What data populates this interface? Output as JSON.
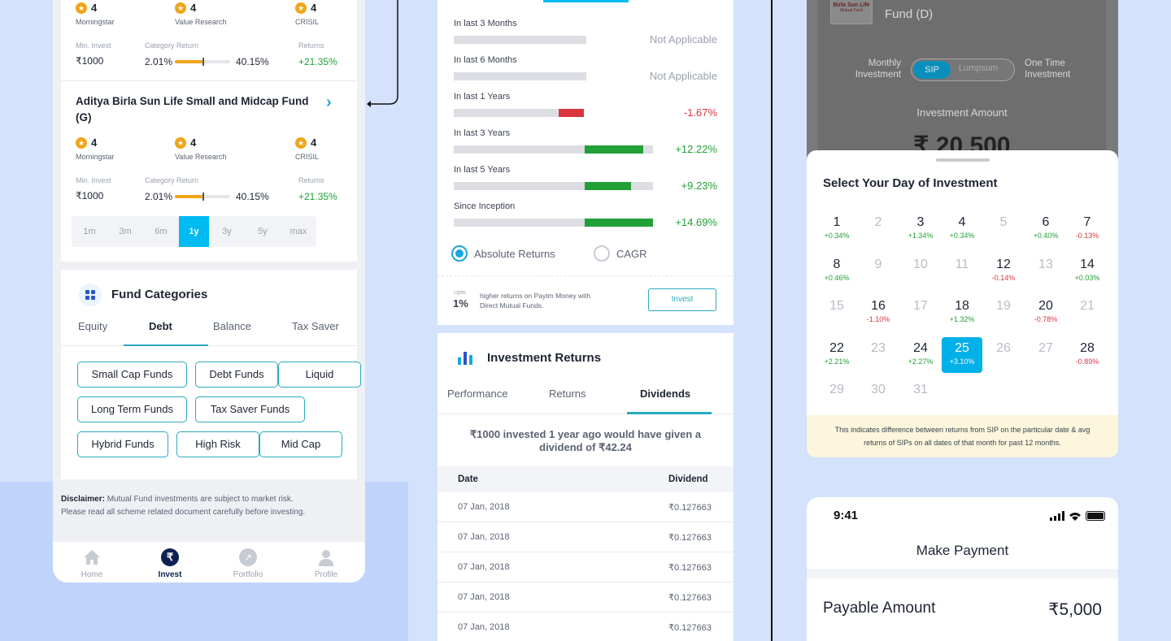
{
  "panel1": {
    "funds": [
      {
        "name": "",
        "ratings": [
          {
            "value": "4",
            "source": "Morningstar"
          },
          {
            "value": "4",
            "source": "Value Research"
          },
          {
            "value": "4",
            "source": "CRISIL"
          }
        ],
        "min_invest_label": "Min. Invest",
        "min_invest": "₹1000",
        "category_return_label": "Category Return",
        "cat_low": "2.01%",
        "cat_high": "40.15%",
        "cat_fill_fraction": 0.5,
        "returns_label": "Returns",
        "returns": "+21.35%"
      },
      {
        "name": "Aditya Birla Sun Life Small and Midcap Fund (G)",
        "ratings": [
          {
            "value": "4",
            "source": "Morningstar"
          },
          {
            "value": "4",
            "source": "Value Research"
          },
          {
            "value": "4",
            "source": "CRISIL"
          }
        ],
        "min_invest_label": "Min. Invest",
        "min_invest": "₹1000",
        "category_return_label": "Category Return",
        "cat_low": "2.01%",
        "cat_high": "40.15%",
        "cat_fill_fraction": 0.5,
        "returns_label": "Returns",
        "returns": "+21.35%"
      }
    ],
    "periods": [
      "1m",
      "3m",
      "6m",
      "1y",
      "3y",
      "5y",
      "max"
    ],
    "active_period": "1y",
    "categories": {
      "title": "Fund Categories",
      "tabs": [
        "Equity",
        "Debt",
        "Balance",
        "Tax Saver"
      ],
      "active_tab": "Debt",
      "chips": [
        "Small Cap Funds",
        "Debt Funds",
        "Liquid",
        "Long Term Funds",
        "Tax Saver Funds",
        "Hybrid Funds",
        "High Risk",
        "Mid Cap"
      ]
    },
    "disclaimer_bold": "Disclaimer:",
    "disclaimer_text": " Mutual Fund investments are subject to market risk.",
    "disclaimer_line2": "Please read all scheme related document carefully before investing.",
    "nav": [
      {
        "label": "Home",
        "icon": "home-icon"
      },
      {
        "label": "Invest",
        "icon": "rupee-icon"
      },
      {
        "label": "Portfolio",
        "icon": "trend-icon"
      },
      {
        "label": "Profile",
        "icon": "user-icon"
      }
    ],
    "active_nav": "Invest"
  },
  "panel2": {
    "returns": [
      {
        "label": "In last 3 Months",
        "value": "Not Applicable",
        "kind": "na"
      },
      {
        "label": "In last 6 Months",
        "value": "Not Applicable",
        "kind": "na"
      },
      {
        "label": "In last 1 Years",
        "value": "-1.67%",
        "kind": "neg",
        "fill_fraction": 0.15
      },
      {
        "label": "In last 3 Years",
        "value": "+12.22%",
        "kind": "pos",
        "fill_fraction": 0.35
      },
      {
        "label": "In last 5 Years",
        "value": "+9.23%",
        "kind": "pos",
        "fill_fraction": 0.28
      },
      {
        "label": "Since Inception",
        "value": "+14.69%",
        "kind": "pos",
        "fill_fraction": 0.41
      }
    ],
    "radio_absolute": "Absolute Returns",
    "radio_cagr": "CAGR",
    "promo_upto": "Upto",
    "promo_pct": "1%",
    "promo_text_line1": "higher returns on Paytm Money with",
    "promo_text_line2": "Direct Mutual Funds.",
    "invest_button": "Invest",
    "investment_returns_title": "Investment Returns",
    "tabs": [
      "Performance",
      "Returns",
      "Dividends"
    ],
    "active_tab": "Dividends",
    "dividend_line1": "₹1000 invested 1 year ago would have given a",
    "dividend_line2": "dividend of ₹42.24",
    "table_headers": [
      "Date",
      "Dividend"
    ],
    "table_rows": [
      [
        "07 Jan, 2018",
        "₹0.127663"
      ],
      [
        "07 Jan, 2018",
        "₹0.127663"
      ],
      [
        "07 Jan, 2018",
        "₹0.127663"
      ],
      [
        "07 Jan, 2018",
        "₹0.127663"
      ],
      [
        "07 Jan, 2018",
        "₹0.127663"
      ]
    ]
  },
  "panel3": {
    "logo_line1": "Birla Sun Life",
    "logo_line2": "Mutual Fund",
    "fund_name_line2": "Fund (D)",
    "monthly_label": "Monthly Investment",
    "toggle_sip": "SIP",
    "toggle_lumpsum": "Lumpsum",
    "onetime_label": "One Time Investment",
    "amount_label": "Investment Amount",
    "amount_value": "₹ 20,500",
    "sheet_title": "Select Your Day of Investment",
    "selected_day": "25",
    "days": [
      {
        "d": "1",
        "v": "+0.34%",
        "k": "pos"
      },
      {
        "d": "2",
        "v": "",
        "k": "dis"
      },
      {
        "d": "3",
        "v": "+1.34%",
        "k": "pos"
      },
      {
        "d": "4",
        "v": "+0.34%",
        "k": "pos"
      },
      {
        "d": "5",
        "v": "",
        "k": "dis"
      },
      {
        "d": "6",
        "v": "+0.40%",
        "k": "pos"
      },
      {
        "d": "7",
        "v": "-0.13%",
        "k": "neg"
      },
      {
        "d": "8",
        "v": "+0.46%",
        "k": "pos"
      },
      {
        "d": "9",
        "v": "",
        "k": "dis"
      },
      {
        "d": "10",
        "v": "",
        "k": "dis"
      },
      {
        "d": "11",
        "v": "",
        "k": "dis"
      },
      {
        "d": "12",
        "v": "-0.14%",
        "k": "neg"
      },
      {
        "d": "13",
        "v": "",
        "k": "dis"
      },
      {
        "d": "14",
        "v": "+0.03%",
        "k": "pos"
      },
      {
        "d": "15",
        "v": "",
        "k": "dis"
      },
      {
        "d": "16",
        "v": "-1.10%",
        "k": "neg"
      },
      {
        "d": "17",
        "v": "",
        "k": "dis"
      },
      {
        "d": "18",
        "v": "+1.32%",
        "k": "pos"
      },
      {
        "d": "19",
        "v": "",
        "k": "dis"
      },
      {
        "d": "20",
        "v": "-0.78%",
        "k": "neg"
      },
      {
        "d": "21",
        "v": "",
        "k": "dis"
      },
      {
        "d": "22",
        "v": "+2.21%",
        "k": "pos"
      },
      {
        "d": "23",
        "v": "",
        "k": "dis"
      },
      {
        "d": "24",
        "v": "+2.27%",
        "k": "pos"
      },
      {
        "d": "25",
        "v": "+3.10%",
        "k": "pos"
      },
      {
        "d": "26",
        "v": "",
        "k": "dis"
      },
      {
        "d": "27",
        "v": "",
        "k": "dis"
      },
      {
        "d": "28",
        "v": "-0.89%",
        "k": "neg"
      },
      {
        "d": "29",
        "v": "",
        "k": "dis"
      },
      {
        "d": "30",
        "v": "",
        "k": "dis"
      },
      {
        "d": "31",
        "v": "",
        "k": "dis"
      }
    ],
    "note_line1": "This indicates difference between returns from SIP on the particular date & avg",
    "note_line2": "returns of SIPs on all dates of that month for past 12 months.",
    "payment": {
      "time": "9:41",
      "title": "Make Payment",
      "payable_label": "Payable Amount",
      "payable_value": "₹5,000"
    }
  },
  "colors": {
    "accent": "#00baf2",
    "teal_border": "#2aa9bf",
    "positive": "#21a038",
    "negative": "#d9363e",
    "navy": "#0b2250",
    "background": "#d5e2fb"
  }
}
